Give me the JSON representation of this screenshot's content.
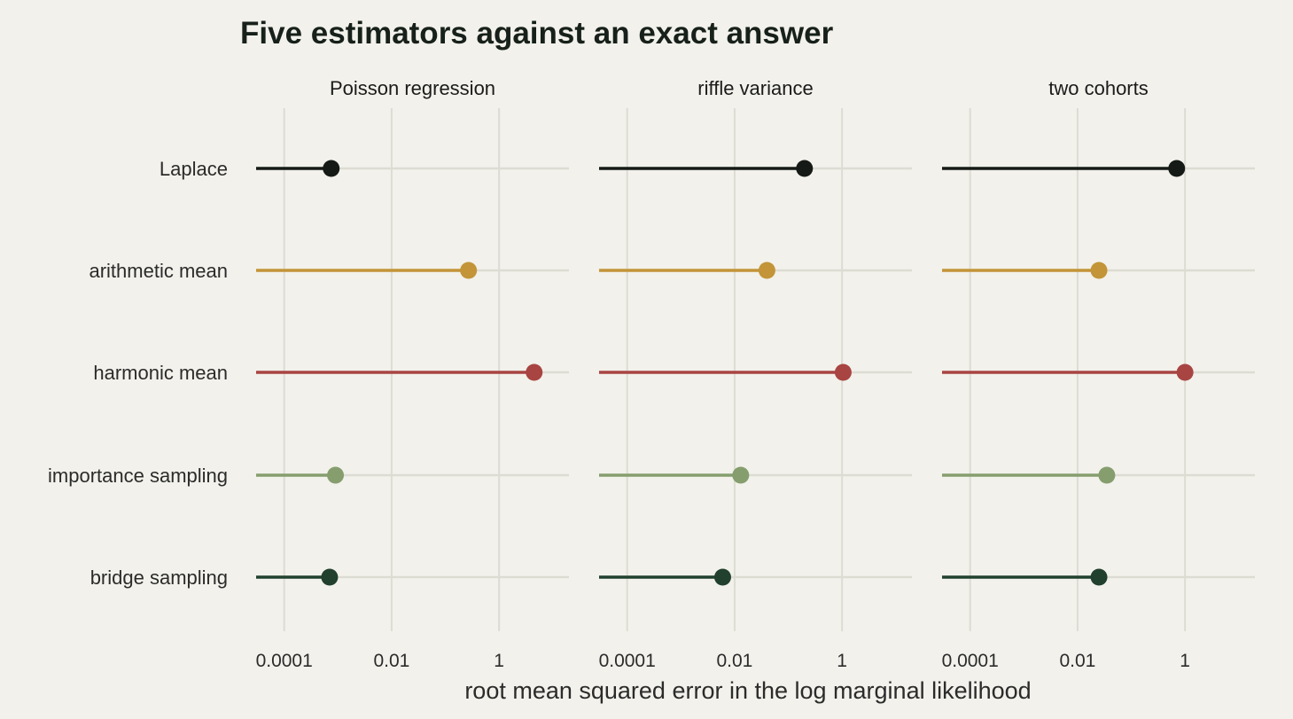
{
  "chart_data": {
    "type": "scatter",
    "style": "lollipop",
    "title": "Five estimators against an exact answer",
    "xlabel": "root mean squared error in the log marginal likelihood",
    "ylabel": "",
    "x_scale": "log10",
    "xlim": [
      3e-05,
      20
    ],
    "x_ticks": [
      0.0001,
      0.01,
      1
    ],
    "x_tick_labels": [
      "0.0001",
      "0.01",
      "1"
    ],
    "grid": true,
    "legend": "none",
    "categories": [
      "Laplace",
      "arithmetic mean",
      "harmonic mean",
      "importance sampling",
      "bridge sampling"
    ],
    "colors": [
      "#151a16",
      "#c39438",
      "#a84442",
      "#869e6e",
      "#21402e"
    ],
    "panels": [
      {
        "name": "Poisson regression",
        "values": [
          0.00075,
          0.27,
          4.5,
          0.0009,
          0.0007
        ]
      },
      {
        "name": "riffle variance",
        "values": [
          0.2,
          0.04,
          1.05,
          0.013,
          0.006
        ]
      },
      {
        "name": "two cohorts",
        "values": [
          0.7,
          0.025,
          1.0,
          0.035,
          0.025
        ]
      }
    ]
  }
}
